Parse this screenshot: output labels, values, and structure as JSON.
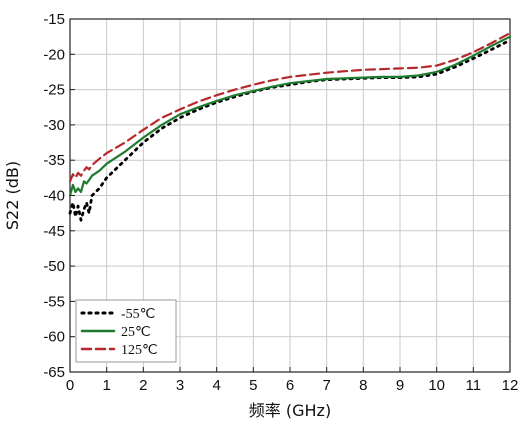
{
  "chart_data": {
    "type": "line",
    "title": "",
    "xlabel": "频率 (GHz)",
    "ylabel": "S22 (dB)",
    "xlim": [
      0,
      12
    ],
    "ylim": [
      -65,
      -15
    ],
    "xticks": [
      0,
      1,
      2,
      3,
      4,
      5,
      6,
      7,
      8,
      9,
      10,
      11,
      12
    ],
    "yticks": [
      -15,
      -20,
      -25,
      -30,
      -35,
      -40,
      -45,
      -50,
      -55,
      -60,
      -65
    ],
    "grid": true,
    "legend_position": "bottom-left",
    "series": [
      {
        "name": "-55℃",
        "color": "#000000",
        "style": "dotted",
        "x": [
          0.0,
          0.08,
          0.15,
          0.22,
          0.3,
          0.38,
          0.45,
          0.52,
          0.6,
          0.8,
          1.0,
          1.5,
          2.0,
          2.5,
          3.0,
          3.5,
          4.0,
          4.5,
          5.0,
          5.5,
          6.0,
          6.5,
          7.0,
          7.5,
          8.0,
          8.5,
          9.0,
          9.5,
          10.0,
          10.5,
          11.0,
          11.5,
          12.0
        ],
        "y": [
          -42.5,
          -41.0,
          -43.0,
          -41.5,
          -43.5,
          -42.0,
          -41.0,
          -42.5,
          -40.0,
          -39.0,
          -37.5,
          -35.0,
          -32.5,
          -30.5,
          -29.0,
          -27.8,
          -26.8,
          -26.0,
          -25.3,
          -24.7,
          -24.3,
          -23.9,
          -23.6,
          -23.5,
          -23.4,
          -23.3,
          -23.3,
          -23.2,
          -22.8,
          -21.8,
          -20.6,
          -19.3,
          -18.0
        ]
      },
      {
        "name": "25℃",
        "color": "#1e7b2e",
        "style": "solid",
        "x": [
          0.0,
          0.08,
          0.15,
          0.22,
          0.3,
          0.38,
          0.45,
          0.52,
          0.6,
          0.8,
          1.0,
          1.5,
          2.0,
          2.5,
          3.0,
          3.5,
          4.0,
          4.5,
          5.0,
          5.5,
          6.0,
          6.5,
          7.0,
          7.5,
          8.0,
          8.5,
          9.0,
          9.5,
          10.0,
          10.5,
          11.0,
          11.5,
          12.0
        ],
        "y": [
          -40.0,
          -38.5,
          -39.5,
          -39.0,
          -39.5,
          -38.0,
          -38.3,
          -37.8,
          -37.2,
          -36.5,
          -35.5,
          -33.8,
          -31.8,
          -30.0,
          -28.5,
          -27.5,
          -26.6,
          -25.8,
          -25.2,
          -24.6,
          -24.1,
          -23.8,
          -23.5,
          -23.4,
          -23.3,
          -23.2,
          -23.2,
          -23.0,
          -22.5,
          -21.5,
          -20.2,
          -18.8,
          -17.5
        ]
      },
      {
        "name": "125℃",
        "color": "#b8272b",
        "style": "dashed",
        "x": [
          0.0,
          0.08,
          0.15,
          0.22,
          0.3,
          0.38,
          0.45,
          0.52,
          0.6,
          0.8,
          1.0,
          1.5,
          2.0,
          2.5,
          3.0,
          3.5,
          4.0,
          4.5,
          5.0,
          5.5,
          6.0,
          6.5,
          7.0,
          7.5,
          8.0,
          8.5,
          9.0,
          9.5,
          10.0,
          10.5,
          11.0,
          11.5,
          12.0
        ],
        "y": [
          -38.0,
          -37.0,
          -37.5,
          -36.8,
          -37.2,
          -36.5,
          -36.0,
          -36.3,
          -35.7,
          -34.8,
          -34.0,
          -32.5,
          -30.7,
          -29.0,
          -27.8,
          -26.7,
          -25.8,
          -25.0,
          -24.3,
          -23.7,
          -23.2,
          -22.9,
          -22.6,
          -22.4,
          -22.2,
          -22.1,
          -22.0,
          -21.9,
          -21.6,
          -20.8,
          -19.7,
          -18.4,
          -17.0
        ]
      }
    ]
  }
}
